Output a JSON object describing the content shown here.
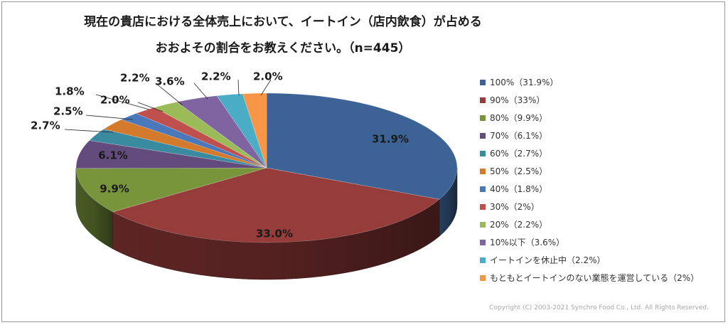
{
  "title_line1": "現在の貴店における全体売上において、イートイン（店内飲食）が占める",
  "title_line2": "おおよその割合をお教えください。（n=445）",
  "copyright": "Copyright (C) 2003-2021  Synchro Food Co., Ltd. All Rights Reserved.",
  "chart_data": {
    "type": "pie",
    "style": "3d",
    "legend_position": "right",
    "categories": [
      "100%（31.9%）",
      "90%（33%）",
      "80%（9.9%）",
      "70%（6.1%）",
      "60%（2.7%）",
      "50%（2.5%）",
      "40%（1.8%）",
      "30%（2%）",
      "20%（2.2%）",
      "10%以下（3.6%）",
      "イートインを休止中（2.2%）",
      "もともとイートインのない業態を運営している（2%）"
    ],
    "values": [
      31.9,
      33.0,
      9.9,
      6.1,
      2.7,
      2.5,
      1.8,
      2.0,
      2.2,
      3.6,
      2.2,
      2.0
    ],
    "data_labels": [
      "31.9%",
      "33.0%",
      "9.9%",
      "6.1%",
      "2.7%",
      "2.5%",
      "1.8%",
      "2.0%",
      "2.2%",
      "3.6%",
      "2.2%",
      "2.0%"
    ],
    "colors": [
      "#3d6396",
      "#963c3a",
      "#78953c",
      "#634b7d",
      "#3a8aa0",
      "#d47a2c",
      "#4a78bb",
      "#c0504d",
      "#9bbb59",
      "#8064a2",
      "#4bacc6",
      "#f79646"
    ]
  }
}
